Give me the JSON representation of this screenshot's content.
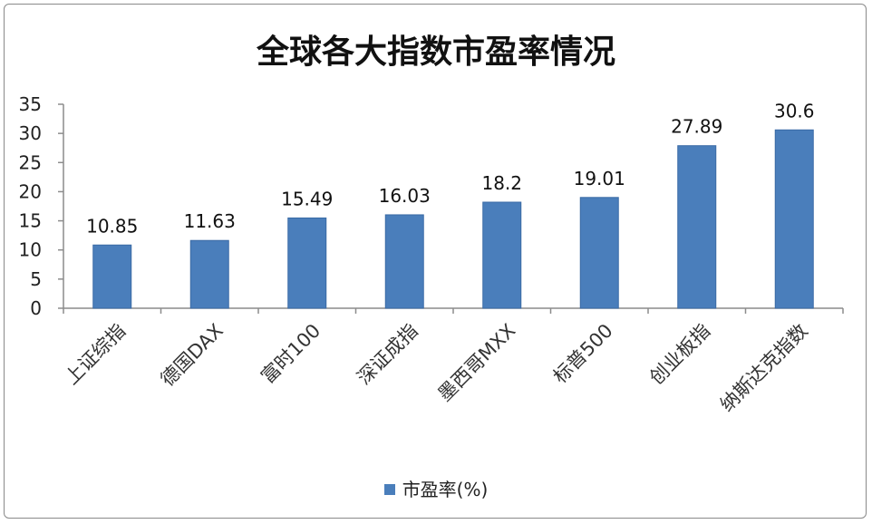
{
  "chart_data": {
    "type": "bar",
    "title": "全球各大指数市盈率情况",
    "categories": [
      "上证综指",
      "德国DAX",
      "富时100",
      "深证成指",
      "墨西哥MXX",
      "标普500",
      "创业板指",
      "纳斯达克指数"
    ],
    "series": [
      {
        "name": "市盈率(%)",
        "values": [
          10.85,
          11.63,
          15.49,
          16.03,
          18.2,
          19.01,
          27.89,
          30.6
        ],
        "labels": [
          "10.85",
          "11.63",
          "15.49",
          "16.03",
          "18.2",
          "19.01",
          "27.89",
          "30.6"
        ],
        "color": "#4a7ebb"
      }
    ],
    "yticks": [
      "0",
      "5",
      "10",
      "15",
      "20",
      "25",
      "30",
      "35"
    ],
    "ylim": [
      0,
      35
    ],
    "grid": false,
    "legend_position": "bottom"
  }
}
